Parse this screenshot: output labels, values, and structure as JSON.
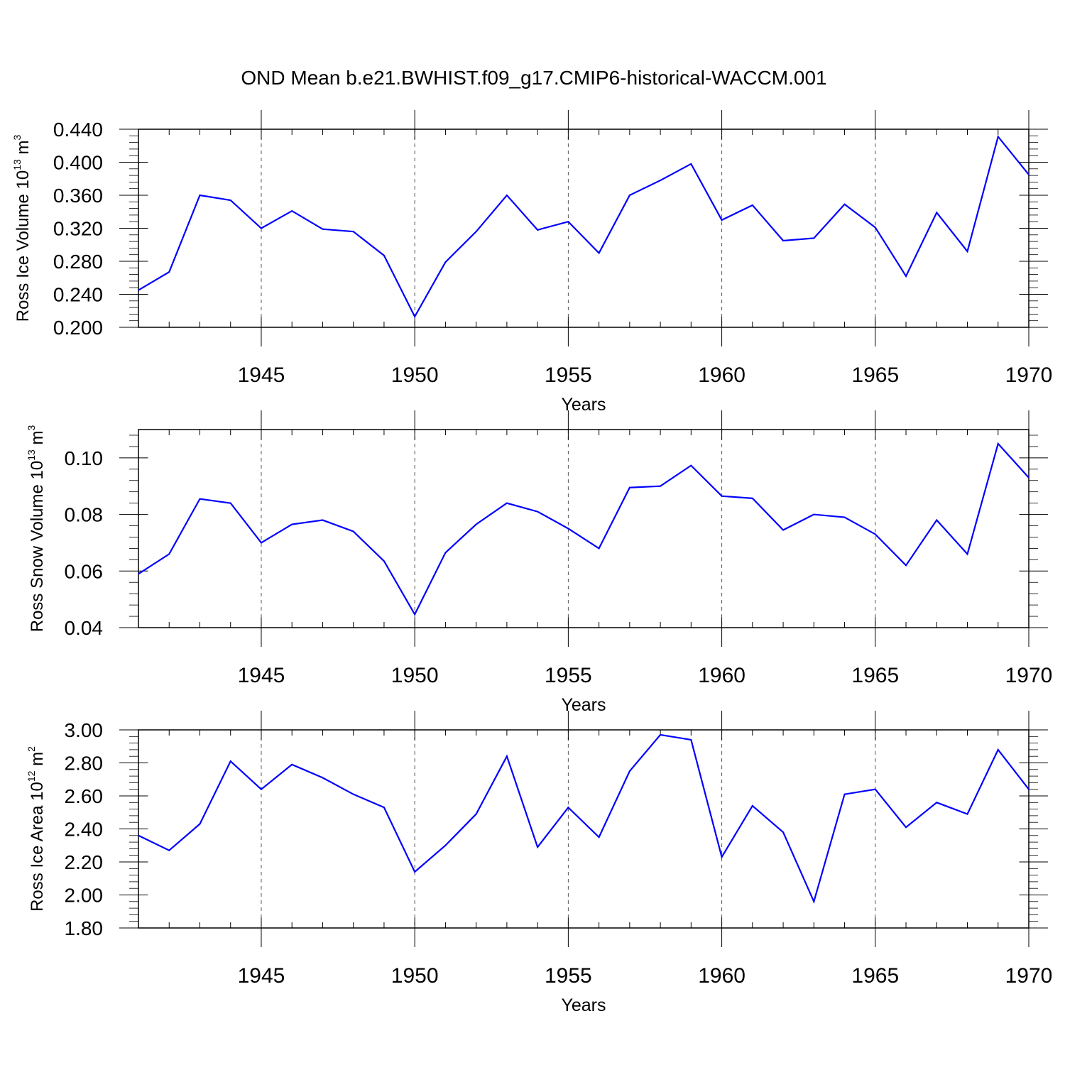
{
  "title": "OND Mean b.e21.BWHIST.f09_g17.CMIP6-historical-WACCM.001",
  "colors": {
    "series": "#0000ff",
    "axis": "#000000",
    "grid": "#555555"
  },
  "chart_data": [
    {
      "type": "line",
      "ylabel": {
        "text": "Ross Ice Volume 10",
        "exp": "13",
        "unit": " m",
        "unit_exp": "3"
      },
      "xlabel": "Years",
      "xlim": [
        1941,
        1970
      ],
      "ylim": [
        0.2,
        0.44
      ],
      "ytick_values": [
        0.2,
        0.24,
        0.28,
        0.32,
        0.36,
        0.4,
        0.44
      ],
      "ytick_labels": [
        "0.200",
        "0.240",
        "0.280",
        "0.320",
        "0.360",
        "0.400",
        "0.440"
      ],
      "xtick_values": [
        1945,
        1950,
        1955,
        1960,
        1965,
        1970
      ],
      "xtick_labels": [
        "1945",
        "1950",
        "1955",
        "1960",
        "1965",
        "1970"
      ],
      "grid": "vertical dashed at major x ticks",
      "x": [
        1941,
        1942,
        1943,
        1944,
        1945,
        1946,
        1947,
        1948,
        1949,
        1950,
        1951,
        1952,
        1953,
        1954,
        1955,
        1956,
        1957,
        1958,
        1959,
        1960,
        1961,
        1962,
        1963,
        1964,
        1965,
        1966,
        1967,
        1968,
        1969,
        1970
      ],
      "series": [
        {
          "name": "Ross Ice Volume",
          "values": [
            0.245,
            0.267,
            0.36,
            0.354,
            0.32,
            0.341,
            0.319,
            0.316,
            0.287,
            0.213,
            0.279,
            0.316,
            0.36,
            0.318,
            0.328,
            0.29,
            0.36,
            0.378,
            0.398,
            0.33,
            0.348,
            0.305,
            0.308,
            0.349,
            0.321,
            0.262,
            0.339,
            0.292,
            0.431,
            0.385
          ]
        }
      ]
    },
    {
      "type": "line",
      "ylabel": {
        "text": "Ross Snow Volume 10",
        "exp": "13",
        "unit": " m",
        "unit_exp": "3"
      },
      "xlabel": "Years",
      "xlim": [
        1941,
        1970
      ],
      "ylim": [
        0.04,
        0.11
      ],
      "ytick_values": [
        0.04,
        0.06,
        0.08,
        0.1
      ],
      "ytick_labels": [
        "0.04",
        "0.06",
        "0.08",
        "0.10"
      ],
      "xtick_values": [
        1945,
        1950,
        1955,
        1960,
        1965,
        1970
      ],
      "xtick_labels": [
        "1945",
        "1950",
        "1955",
        "1960",
        "1965",
        "1970"
      ],
      "grid": "vertical dashed at major x ticks",
      "x": [
        1941,
        1942,
        1943,
        1944,
        1945,
        1946,
        1947,
        1948,
        1949,
        1950,
        1951,
        1952,
        1953,
        1954,
        1955,
        1956,
        1957,
        1958,
        1959,
        1960,
        1961,
        1962,
        1963,
        1964,
        1965,
        1966,
        1967,
        1968,
        1969,
        1970
      ],
      "series": [
        {
          "name": "Ross Snow Volume",
          "values": [
            0.059,
            0.066,
            0.0855,
            0.084,
            0.07,
            0.0765,
            0.078,
            0.074,
            0.0635,
            0.0447,
            0.0665,
            0.0765,
            0.084,
            0.081,
            0.075,
            0.068,
            0.0895,
            0.09,
            0.0973,
            0.0865,
            0.0857,
            0.0745,
            0.08,
            0.079,
            0.073,
            0.062,
            0.078,
            0.066,
            0.105,
            0.093
          ]
        }
      ]
    },
    {
      "type": "line",
      "ylabel": {
        "text": "Ross Ice Area 10",
        "exp": "12",
        "unit": " m",
        "unit_exp": "2"
      },
      "xlabel": "Years",
      "xlim": [
        1941,
        1970
      ],
      "ylim": [
        1.8,
        3.0
      ],
      "ytick_values": [
        1.8,
        2.0,
        2.2,
        2.4,
        2.6,
        2.8,
        3.0
      ],
      "ytick_labels": [
        "1.80",
        "2.00",
        "2.20",
        "2.40",
        "2.60",
        "2.80",
        "3.00"
      ],
      "xtick_values": [
        1945,
        1950,
        1955,
        1960,
        1965,
        1970
      ],
      "xtick_labels": [
        "1945",
        "1950",
        "1955",
        "1960",
        "1965",
        "1970"
      ],
      "grid": "vertical dashed at major x ticks",
      "x": [
        1941,
        1942,
        1943,
        1944,
        1945,
        1946,
        1947,
        1948,
        1949,
        1950,
        1951,
        1952,
        1953,
        1954,
        1955,
        1956,
        1957,
        1958,
        1959,
        1960,
        1961,
        1962,
        1963,
        1964,
        1965,
        1966,
        1967,
        1968,
        1969,
        1970
      ],
      "series": [
        {
          "name": "Ross Ice Area",
          "values": [
            2.36,
            2.27,
            2.43,
            2.81,
            2.64,
            2.79,
            2.71,
            2.61,
            2.53,
            2.14,
            2.3,
            2.49,
            2.84,
            2.29,
            2.53,
            2.35,
            2.75,
            2.97,
            2.94,
            2.23,
            2.54,
            2.38,
            1.96,
            2.61,
            2.64,
            2.41,
            2.56,
            2.49,
            2.88,
            2.64
          ]
        }
      ]
    }
  ]
}
